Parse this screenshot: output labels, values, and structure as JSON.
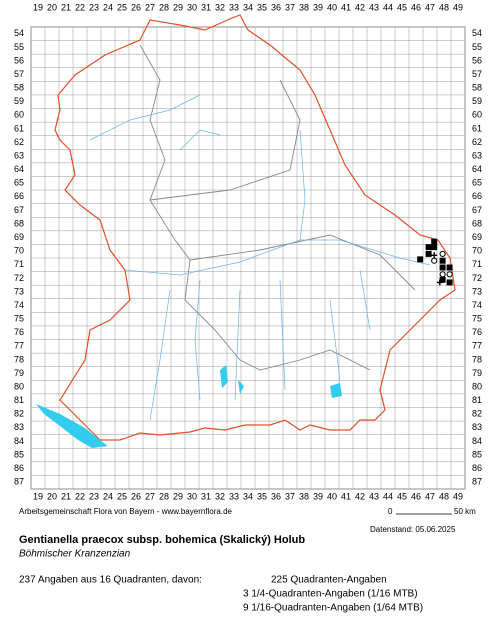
{
  "map": {
    "columns": [
      "19",
      "20",
      "21",
      "22",
      "23",
      "24",
      "25",
      "26",
      "27",
      "28",
      "29",
      "30",
      "31",
      "32",
      "33",
      "34",
      "35",
      "36",
      "37",
      "38",
      "39",
      "40",
      "41",
      "42",
      "43",
      "44",
      "45",
      "46",
      "47",
      "48",
      "49"
    ],
    "rows": [
      "54",
      "55",
      "56",
      "57",
      "58",
      "59",
      "60",
      "61",
      "62",
      "63",
      "64",
      "65",
      "66",
      "67",
      "68",
      "69",
      "70",
      "71",
      "72",
      "73",
      "74",
      "75",
      "76",
      "77",
      "78",
      "79",
      "80",
      "81",
      "82",
      "83",
      "84",
      "85",
      "86",
      "87"
    ],
    "records": [
      {
        "col": 47.3,
        "row": 69.3,
        "symbol": "filled"
      },
      {
        "col": 46.9,
        "row": 69.7,
        "symbol": "filled"
      },
      {
        "col": 47.3,
        "row": 69.7,
        "symbol": "filled"
      },
      {
        "col": 46.9,
        "row": 70.2,
        "symbol": "filled"
      },
      {
        "col": 47.3,
        "row": 70.3,
        "symbol": "plus"
      },
      {
        "col": 47.9,
        "row": 70.2,
        "symbol": "circle"
      },
      {
        "col": 46.3,
        "row": 70.6,
        "symbol": "filled"
      },
      {
        "col": 47.3,
        "row": 70.7,
        "symbol": "circle"
      },
      {
        "col": 47.9,
        "row": 70.7,
        "symbol": "filled"
      },
      {
        "col": 47.9,
        "row": 71.2,
        "symbol": "filled"
      },
      {
        "col": 48.4,
        "row": 71.2,
        "symbol": "filled"
      },
      {
        "col": 47.9,
        "row": 71.7,
        "symbol": "circle"
      },
      {
        "col": 48.4,
        "row": 71.7,
        "symbol": "circle"
      },
      {
        "col": 47.9,
        "row": 72.1,
        "symbol": "filled"
      },
      {
        "col": 47.7,
        "row": 72.3,
        "symbol": "plus"
      },
      {
        "col": 48.4,
        "row": 72.3,
        "symbol": "filled"
      }
    ]
  },
  "footer": {
    "credit": "Arbeitsgemeinschaft Flora von Bayern - www.bayernflora.de",
    "scale_start": "0",
    "scale_end": "50 km",
    "date": "Datenstand: 05.06.2025"
  },
  "species": {
    "title": "Gentianella praecox subsp. bohemica (Skalický) Holub",
    "subtitle": "Böhmischer Kranzenzian"
  },
  "stats": {
    "summary": "237 Angaben aus 16 Quadranten, davon:",
    "lines": [
      "225 Quadranten-Angaben",
      "3 1/4-Quadranten-Angaben (1/16 MTB)",
      "9 1/16-Quadranten-Angaben (1/64 MTB)"
    ]
  }
}
